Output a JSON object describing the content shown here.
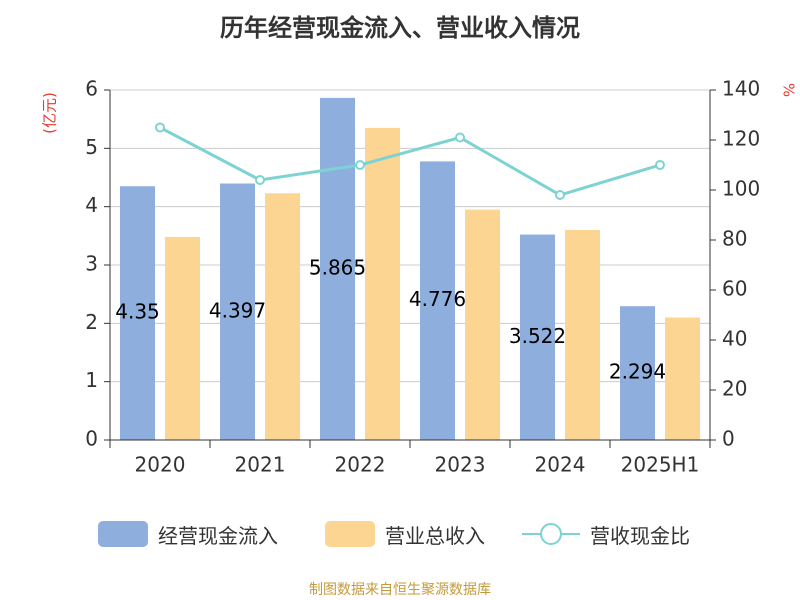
{
  "chart_data": {
    "type": "bar",
    "title": "历年经营现金流入、营业收入情况",
    "categories": [
      "2020",
      "2021",
      "2022",
      "2023",
      "2024",
      "2025H1"
    ],
    "y_left": {
      "label": "(亿元)",
      "range": [
        0,
        6
      ],
      "ticks": [
        "0",
        "1",
        "2",
        "3",
        "4",
        "5",
        "6"
      ]
    },
    "y_right": {
      "label": "%",
      "range": [
        0,
        140
      ],
      "ticks": [
        "0",
        "20",
        "40",
        "60",
        "80",
        "100",
        "120",
        "140"
      ]
    },
    "series": [
      {
        "name": "经营现金流入",
        "type": "bar",
        "axis": "left",
        "color": "#8eaedd",
        "values": [
          4.35,
          4.397,
          5.865,
          4.776,
          3.522,
          2.294
        ],
        "labels": [
          "4.35",
          "4.397",
          "5.865",
          "4.776",
          "3.522",
          "2.294"
        ]
      },
      {
        "name": "营业总收入",
        "type": "bar",
        "axis": "left",
        "color": "#fdd593",
        "values": [
          3.48,
          4.23,
          5.35,
          3.95,
          3.6,
          2.1
        ]
      },
      {
        "name": "营收现金比",
        "type": "line",
        "axis": "right",
        "color": "#7dd3d3",
        "values": [
          125,
          104,
          110,
          121,
          98,
          110
        ]
      }
    ],
    "grid": true,
    "legend": "bottom"
  },
  "footer": {
    "source": "制图数据来自恒生聚源数据库"
  }
}
